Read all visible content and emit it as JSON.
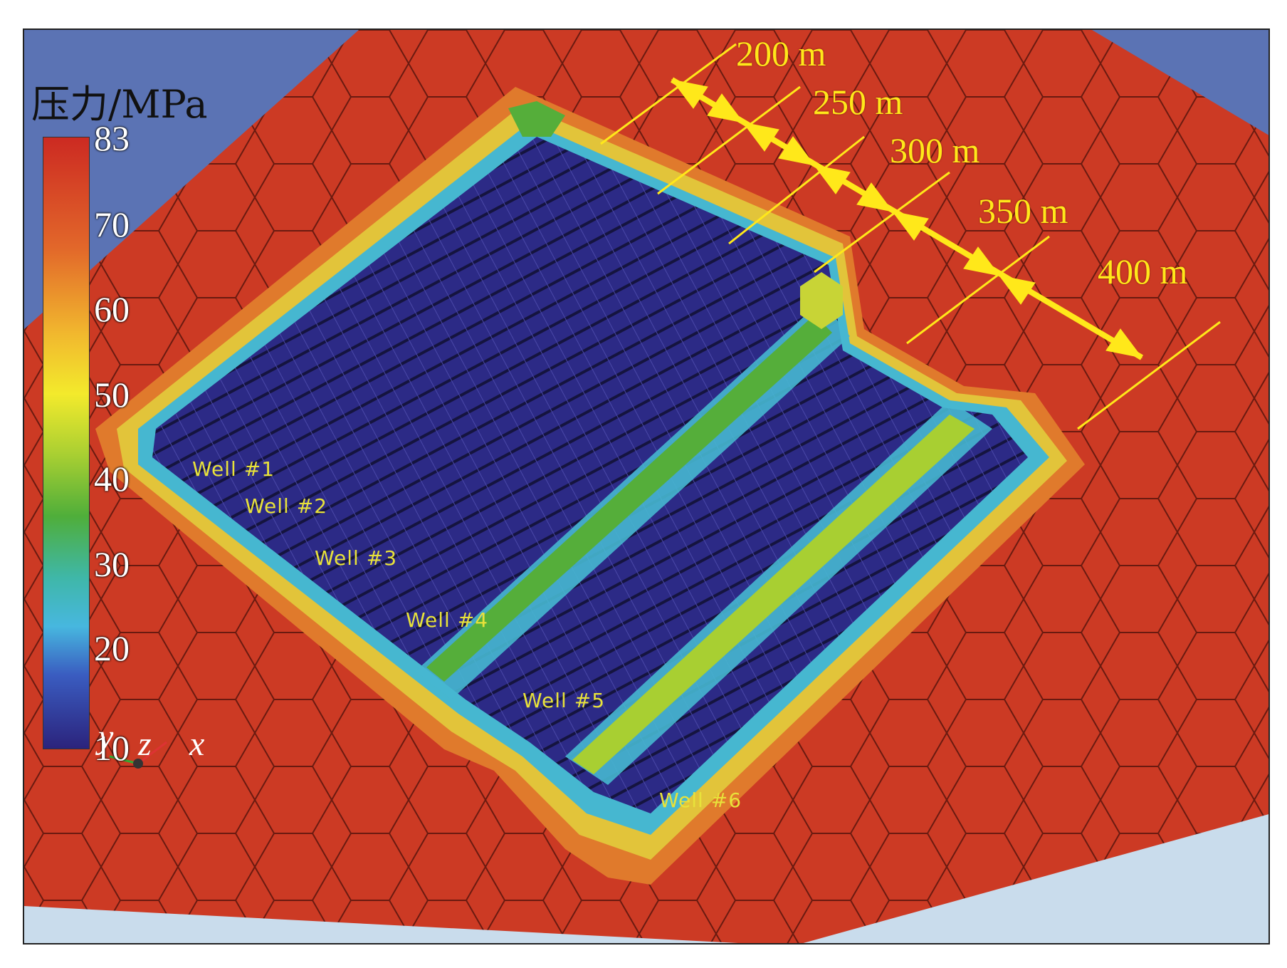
{
  "legend": {
    "title": "压力/MPa",
    "ticks": [
      "83",
      "70",
      "60",
      "50",
      "40",
      "30",
      "20",
      "10"
    ]
  },
  "colors": {
    "background_blue": "#5b73b4",
    "grid_red": "#cc3a24",
    "fracture_navy": "#2c2a86",
    "stimulated_blue": "#3c63c8",
    "cyan": "#46b7d0",
    "green": "#55ae3a",
    "lime": "#a8cf32",
    "yellow": "#e2c43a",
    "orange": "#e07a2c",
    "annotation_yellow": "#ffe81a"
  },
  "wells": [
    "Well #1",
    "Well #2",
    "Well #3",
    "Well #4",
    "Well #5",
    "Well #6"
  ],
  "distances": [
    "200 m",
    "250 m",
    "300 m",
    "350 m",
    "400 m"
  ],
  "axes": {
    "y": "y",
    "z": "z",
    "x": "x"
  }
}
